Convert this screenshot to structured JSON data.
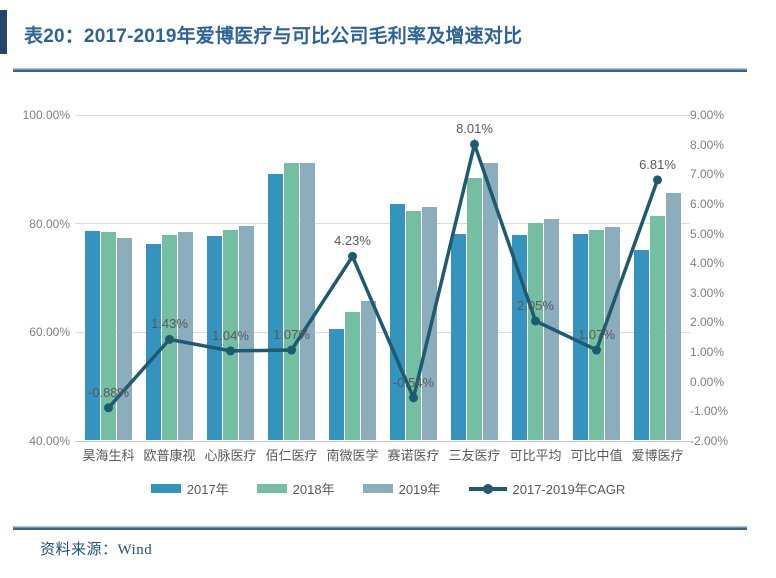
{
  "header": {
    "title": "表20：2017-2019年爱博医疗与可比公司毛利率及增速对比"
  },
  "footer": {
    "source": "资料来源：Wind"
  },
  "colors": {
    "title_text": "#2E6398",
    "accent_bar": "#24466B",
    "divider": "#3A6486",
    "axis_text": "#7F7F7F",
    "label_text": "#595959",
    "gridline": "#DBDBDB"
  },
  "chart_data": {
    "type": "bar",
    "subtype": "grouped bars with secondary-axis line (combo)",
    "categories": [
      "昊海生科",
      "欧普康视",
      "心脉医疗",
      "佰仁医疗",
      "南微医学",
      "赛诺医疗",
      "三友医疗",
      "可比平均",
      "可比中值",
      "爱博医疗"
    ],
    "series": [
      {
        "name": "2017年",
        "type": "bar",
        "color": "#3494BE",
        "values": [
          78.4,
          76.1,
          77.6,
          89.0,
          60.5,
          83.5,
          78.0,
          77.7,
          78.0,
          74.9
        ]
      },
      {
        "name": "2018年",
        "type": "bar",
        "color": "#74BFA2",
        "values": [
          78.3,
          77.8,
          78.6,
          91.0,
          63.5,
          82.1,
          88.3,
          80.0,
          78.6,
          81.2
        ]
      },
      {
        "name": "2019年",
        "type": "bar",
        "color": "#8CADBB",
        "values": [
          77.1,
          78.3,
          79.3,
          91.0,
          65.6,
          82.8,
          91.0,
          80.7,
          79.2,
          85.5
        ]
      },
      {
        "name": "2017-2019年CAGR",
        "type": "line",
        "color": "#1E5A70",
        "values": [
          -0.88,
          1.43,
          1.04,
          1.07,
          4.23,
          -0.54,
          8.01,
          2.05,
          1.07,
          6.81
        ],
        "point_labels": [
          "-0.88%",
          "1.43%",
          "1.04%",
          "1.07%",
          "4.23%",
          "-0.54%",
          "8.01%",
          "2.05%",
          "1.07%",
          "6.81%"
        ]
      }
    ],
    "left_axis": {
      "min": 40,
      "max": 100,
      "tick_values": [
        100,
        80,
        60,
        40
      ],
      "tick_labels": [
        "100.00%",
        "80.00%",
        "60.00%",
        "40.00%"
      ]
    },
    "right_axis": {
      "min": -2,
      "max": 9,
      "tick_values": [
        9,
        8,
        7,
        6,
        5,
        4,
        3,
        2,
        1,
        0,
        -1,
        -2
      ],
      "tick_labels": [
        "9.00%",
        "8.00%",
        "7.00%",
        "6.00%",
        "5.00%",
        "4.00%",
        "3.00%",
        "2.00%",
        "1.00%",
        "0.00%",
        "-1.00%",
        "-2.00%"
      ]
    },
    "grid": true,
    "legend_position": "bottom"
  }
}
